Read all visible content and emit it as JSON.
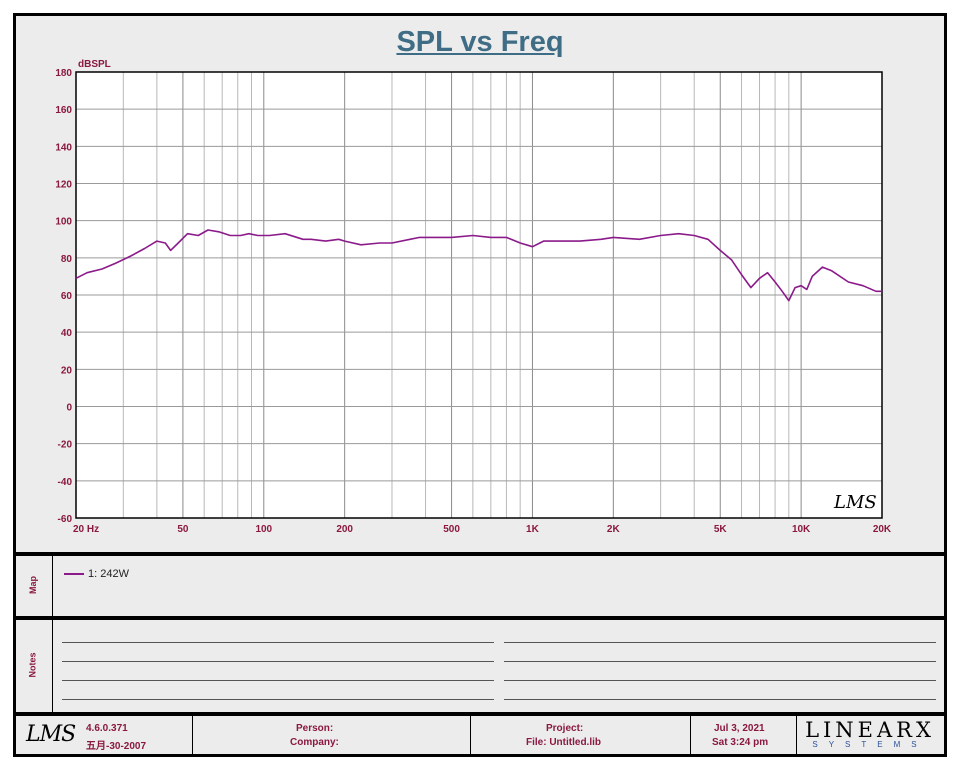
{
  "chart_data": {
    "type": "line",
    "title": "SPL vs Freq",
    "ylabel": "dBSPL",
    "xlabel": "",
    "x_scale": "log",
    "xlim": [
      20,
      20000
    ],
    "ylim": [
      -60,
      180
    ],
    "grid": true,
    "y_ticks": [
      180,
      160,
      140,
      120,
      100,
      80,
      60,
      40,
      20,
      0,
      -20,
      -40,
      -60
    ],
    "x_tick_labels": [
      {
        "value": 20,
        "label": "20  Hz"
      },
      {
        "value": 50,
        "label": "50"
      },
      {
        "value": 100,
        "label": "100"
      },
      {
        "value": 200,
        "label": "200"
      },
      {
        "value": 500,
        "label": "500"
      },
      {
        "value": 1000,
        "label": "1K"
      },
      {
        "value": 2000,
        "label": "2K"
      },
      {
        "value": 5000,
        "label": "5K"
      },
      {
        "value": 10000,
        "label": "10K"
      },
      {
        "value": 20000,
        "label": "20K"
      }
    ],
    "series": [
      {
        "name": "1: 242W",
        "color": "#8b1a8b",
        "x": [
          20,
          22,
          25,
          28,
          32,
          36,
          40,
          43,
          45,
          48,
          52,
          57,
          62,
          68,
          75,
          82,
          88,
          95,
          105,
          120,
          140,
          150,
          170,
          190,
          200,
          230,
          270,
          300,
          350,
          380,
          400,
          500,
          600,
          700,
          800,
          900,
          1000,
          1100,
          1300,
          1500,
          1800,
          2000,
          2500,
          3000,
          3500,
          4000,
          4500,
          5000,
          5500,
          6000,
          6500,
          7000,
          7500,
          8000,
          8500,
          9000,
          9500,
          10000,
          10500,
          11000,
          12000,
          13000,
          15000,
          17000,
          19000,
          20000
        ],
        "y": [
          69,
          72,
          74,
          77,
          81,
          85,
          89,
          88,
          84,
          88,
          93,
          92,
          95,
          94,
          92,
          92,
          93,
          92,
          92,
          93,
          90,
          90,
          89,
          90,
          89,
          87,
          88,
          88,
          90,
          91,
          91,
          91,
          92,
          91,
          91,
          88,
          86,
          89,
          89,
          89,
          90,
          91,
          90,
          92,
          93,
          92,
          90,
          84,
          79,
          71,
          64,
          69,
          72,
          67,
          62,
          57,
          64,
          65,
          63,
          70,
          75,
          73,
          67,
          65,
          62,
          62
        ]
      }
    ]
  },
  "legend": {
    "entries": [
      {
        "label": "1: 242W",
        "color": "#8b1a8b"
      }
    ]
  },
  "panels": {
    "map_label": "Map",
    "notes_label": "Notes"
  },
  "watermark": "LMS",
  "footer": {
    "logo": "LMS",
    "version": "4.6.0.371",
    "build_date": "五月-30-2007",
    "person_label": "Person:",
    "company_label": "Company:",
    "project_label": "Project:",
    "file_label": "File: Untitled.lib",
    "date": "Jul  3, 2021",
    "time": "Sat  3:24 pm",
    "brand": "LINEARX",
    "brand_sub": "SYSTEMS"
  }
}
